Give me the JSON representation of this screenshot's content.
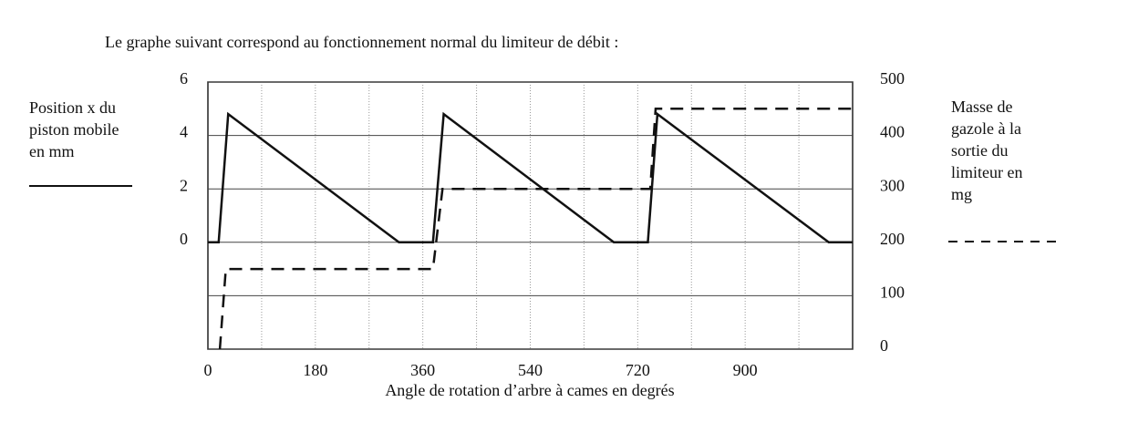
{
  "chart_data": {
    "type": "line",
    "title": "Le graphe suivant correspond au fonctionnement normal du limiteur de débit :",
    "xlabel": "Angle de rotation d’arbre à cames en degrés",
    "ylabel": [
      "Position x du",
      "piston mobile",
      "en mm"
    ],
    "y2label": [
      "Masse de",
      "gazole à la",
      "sortie du",
      "limiteur en",
      "mg"
    ],
    "xlim": [
      0,
      1080
    ],
    "xticks": [
      0,
      180,
      360,
      540,
      720,
      900
    ],
    "xgrid": [
      90,
      180,
      270,
      360,
      450,
      540,
      630,
      720,
      810,
      900,
      990
    ],
    "ylim": [
      -4,
      6
    ],
    "yticks": [
      0,
      2,
      4,
      6
    ],
    "y2lim": [
      0,
      500
    ],
    "y2ticks": [
      0,
      100,
      200,
      300,
      400,
      500
    ],
    "grid": true,
    "series": [
      {
        "color": "#111",
        "style": "solid",
        "x": [
          0,
          18,
          34,
          320,
          377,
          395,
          680,
          737,
          753,
          1040,
          1080
        ],
        "values": [
          0,
          0,
          4.8,
          0,
          0,
          4.8,
          0,
          0,
          4.8,
          0,
          0
        ]
      },
      {
        "color": "#111",
        "style": "dashed",
        "axis": "y2",
        "x": [
          20,
          30,
          377,
          377,
          393,
          741,
          741,
          750,
          1080
        ],
        "values": [
          0,
          150,
          150,
          150,
          300,
          300,
          300,
          450,
          450
        ]
      }
    ]
  }
}
